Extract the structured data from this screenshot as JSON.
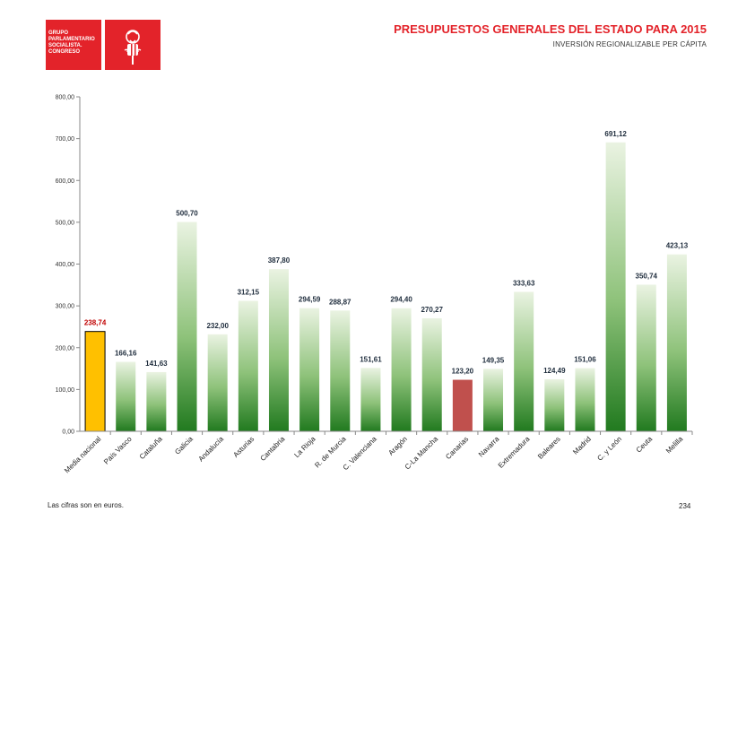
{
  "header": {
    "logo_lines": [
      "GRUPO",
      "PARLAMENTARIO",
      "SOCIALISTA.",
      "CONGRESO"
    ],
    "title": "PRESUPUESTOS GENERALES DEL ESTADO PARA 2015",
    "subtitle": "INVERSIÓN REGIONALIZABLE PER CÁPITA"
  },
  "colors": {
    "brand_red": "#e3232a",
    "national_bar": "#ffc000",
    "canarias_bar": "#c0504d",
    "green_dark": "#217a1f",
    "green_light": "#eaf3e2"
  },
  "chart_data": {
    "type": "bar",
    "title": "",
    "xlabel": "",
    "ylabel": "",
    "ylim": [
      0,
      800
    ],
    "yticks": [
      "0,00",
      "100,00",
      "200,00",
      "300,00",
      "400,00",
      "500,00",
      "600,00",
      "700,00",
      "800,00"
    ],
    "categories": [
      "Media nacional",
      "País Vasco",
      "Cataluña",
      "Galicia",
      "Andalucía",
      "Asturias",
      "Cantabria",
      "La Rioja",
      "R. de Murcia",
      "C. Valenciana",
      "Aragón",
      "C-La Mancha",
      "Canarias",
      "Navarra",
      "Extremadura",
      "Baleares",
      "Madrid",
      "C. y León",
      "Ceuta",
      "Melilla"
    ],
    "values": [
      238.74,
      166.16,
      141.63,
      500.7,
      232.0,
      312.15,
      387.8,
      294.59,
      288.87,
      151.61,
      294.4,
      270.27,
      123.2,
      149.35,
      333.63,
      124.49,
      151.06,
      691.12,
      350.74,
      423.13
    ],
    "value_labels": [
      "238,74",
      "166,16",
      "141,63",
      "500,70",
      "232,00",
      "312,15",
      "387,80",
      "294,59",
      "288,87",
      "151,61",
      "294,40",
      "270,27",
      "123,20",
      "149,35",
      "333,63",
      "124,49",
      "151,06",
      "691,12",
      "350,74",
      "423,13"
    ],
    "grid": false,
    "legend": "none"
  },
  "footer": {
    "note": "Las cifras son en euros.",
    "page_number": "234"
  }
}
